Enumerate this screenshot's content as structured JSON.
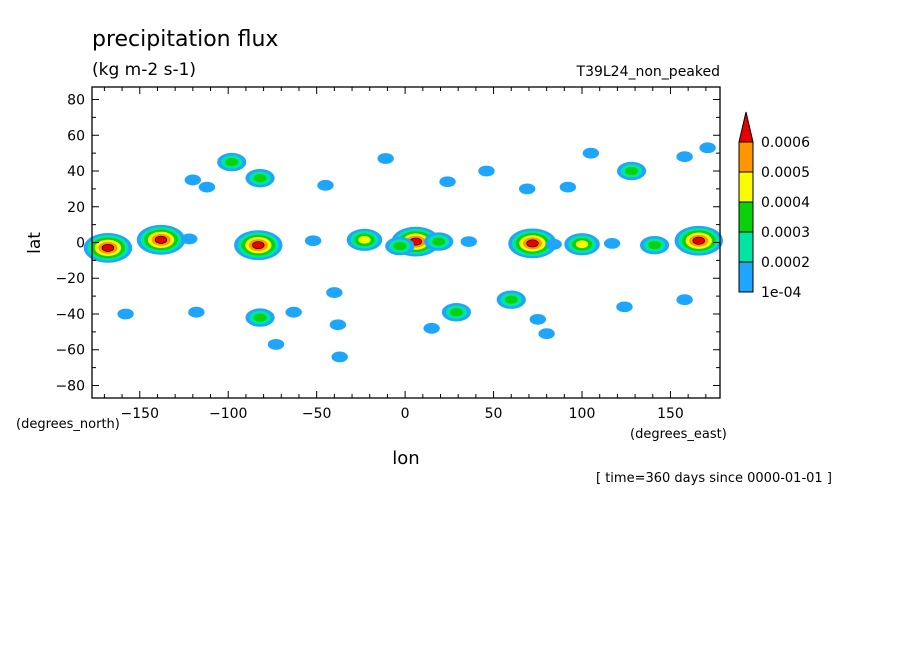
{
  "chart_data": {
    "type": "heatmap",
    "title": "precipitation flux",
    "units": "(kg m-2 s-1)",
    "run_label": "T39L24_non_peaked",
    "xlabel": "lon",
    "ylabel": "lat",
    "x_units": "(degrees_east)",
    "y_units": "(degrees_north)",
    "time_label": "[ time=360 days since 0000-01-01 ]",
    "xlim": [
      -177,
      178
    ],
    "ylim": [
      -87,
      87
    ],
    "x_ticks": [
      -150,
      -100,
      -50,
      0,
      50,
      100,
      150
    ],
    "y_ticks": [
      80,
      60,
      40,
      20,
      0,
      -20,
      -40,
      -60,
      -80
    ],
    "colorbar": {
      "levels": [
        0.0001,
        0.0002,
        0.0003,
        0.0004,
        0.0005,
        0.0006
      ],
      "labels": [
        "1e-04",
        "0.0002",
        "0.0003",
        "0.0004",
        "0.0005",
        "0.0006"
      ],
      "colors": [
        "#1ea6ff",
        "#00e6a0",
        "#0ad20a",
        "#fafa00",
        "#ff9600",
        "#e60000"
      ]
    },
    "features": [
      {
        "lon": -168,
        "lat": -3,
        "peak": 0.00062
      },
      {
        "lon": -138,
        "lat": 1.5,
        "peak": 0.00062
      },
      {
        "lon": -122,
        "lat": 2,
        "peak": 0.00015
      },
      {
        "lon": -83,
        "lat": -1.5,
        "peak": 0.00061
      },
      {
        "lon": -52,
        "lat": 1,
        "peak": 0.00015
      },
      {
        "lon": -23,
        "lat": 1.5,
        "peak": 0.00045
      },
      {
        "lon": 6,
        "lat": 0.5,
        "peak": 0.00065
      },
      {
        "lon": -3,
        "lat": -2,
        "peak": 0.00035
      },
      {
        "lon": 19,
        "lat": 0.5,
        "peak": 0.00035
      },
      {
        "lon": 36,
        "lat": 0.5,
        "peak": 0.00015
      },
      {
        "lon": 72,
        "lat": -0.5,
        "peak": 0.00061
      },
      {
        "lon": 100,
        "lat": -1,
        "peak": 0.00045
      },
      {
        "lon": 84,
        "lat": -1,
        "peak": 0.00015
      },
      {
        "lon": 117,
        "lat": -0.5,
        "peak": 0.00015
      },
      {
        "lon": 141,
        "lat": -1.5,
        "peak": 0.00035
      },
      {
        "lon": 166,
        "lat": 1,
        "peak": 0.00062
      },
      {
        "lon": -98,
        "lat": 45,
        "peak": 0.00035
      },
      {
        "lon": -82,
        "lat": 36,
        "peak": 0.00035
      },
      {
        "lon": -120,
        "lat": 35,
        "peak": 0.00013
      },
      {
        "lon": -112,
        "lat": 31,
        "peak": 0.00012
      },
      {
        "lon": -45,
        "lat": 32,
        "peak": 0.00013
      },
      {
        "lon": -11,
        "lat": 47,
        "peak": 0.00013
      },
      {
        "lon": 24,
        "lat": 34,
        "peak": 0.00013
      },
      {
        "lon": 46,
        "lat": 40,
        "peak": 0.00013
      },
      {
        "lon": 69,
        "lat": 30,
        "peak": 0.00015
      },
      {
        "lon": 92,
        "lat": 31,
        "peak": 0.00015
      },
      {
        "lon": 105,
        "lat": 50,
        "peak": 0.00016
      },
      {
        "lon": 128,
        "lat": 40,
        "peak": 0.00035
      },
      {
        "lon": 158,
        "lat": 48,
        "peak": 0.00012
      },
      {
        "lon": 171,
        "lat": 53,
        "peak": 0.00015
      },
      {
        "lon": -158,
        "lat": -40,
        "peak": 0.00015
      },
      {
        "lon": -118,
        "lat": -39,
        "peak": 0.00013
      },
      {
        "lon": -82,
        "lat": -42,
        "peak": 0.00035
      },
      {
        "lon": -73,
        "lat": -57,
        "peak": 0.00013
      },
      {
        "lon": -63,
        "lat": -39,
        "peak": 0.00012
      },
      {
        "lon": -40,
        "lat": -28,
        "peak": 0.00013
      },
      {
        "lon": -38,
        "lat": -46,
        "peak": 0.00013
      },
      {
        "lon": -37,
        "lat": -64,
        "peak": 0.00015
      },
      {
        "lon": 15,
        "lat": -48,
        "peak": 0.00012
      },
      {
        "lon": 29,
        "lat": -39,
        "peak": 0.00035
      },
      {
        "lon": 60,
        "lat": -32,
        "peak": 0.00035
      },
      {
        "lon": 80,
        "lat": -51,
        "peak": 0.00013
      },
      {
        "lon": 75,
        "lat": -43,
        "peak": 0.00012
      },
      {
        "lon": 124,
        "lat": -36,
        "peak": 0.00016
      },
      {
        "lon": 158,
        "lat": -32,
        "peak": 0.00015
      }
    ]
  }
}
